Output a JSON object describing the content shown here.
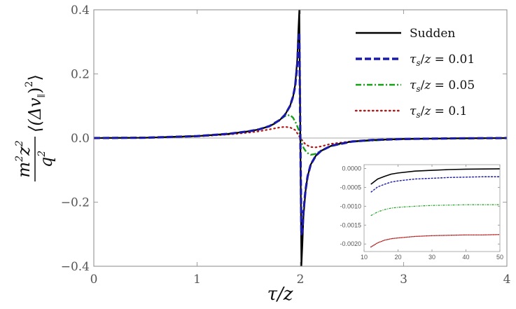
{
  "colors": {
    "Sudden": "#000000",
    "tau0.01": "#1a1aa6",
    "tau0.05": "#19a019",
    "tau0.1": "#b01717"
  },
  "chart_data": [
    {
      "type": "line",
      "xlabel": "τ/z",
      "ylabel": "m²z²/q² ⟨(Δv∥)²⟩",
      "xlim": [
        0,
        4
      ],
      "ylim": [
        -0.4,
        0.4
      ],
      "xticks": [
        "0",
        "1",
        "2",
        "3",
        "4"
      ],
      "yticks": [
        "−0.4",
        "−0.2",
        "0.0",
        "0.2",
        "0.4"
      ],
      "grid": false,
      "legend_position": "top-right",
      "series": [
        {
          "name": "Sudden",
          "key": "Sudden",
          "style": "solid",
          "x": [
            0.0,
            0.5,
            1.0,
            1.3,
            1.5,
            1.6,
            1.7,
            1.75,
            1.8,
            1.85,
            1.9,
            1.93,
            1.95,
            1.97,
            1.98,
            1.99,
            2.01,
            2.02,
            2.03,
            2.05,
            2.07,
            2.1,
            2.15,
            2.2,
            2.3,
            2.4,
            2.5,
            2.7,
            3.0,
            3.5,
            4.0
          ],
          "y": [
            0.0,
            0.001,
            0.006,
            0.013,
            0.021,
            0.027,
            0.037,
            0.045,
            0.056,
            0.072,
            0.1,
            0.13,
            0.166,
            0.245,
            0.33,
            0.4,
            -0.4,
            -0.33,
            -0.245,
            -0.166,
            -0.12,
            -0.083,
            -0.055,
            -0.04,
            -0.024,
            -0.016,
            -0.011,
            -0.006,
            -0.003,
            -0.001,
            0.0
          ]
        },
        {
          "name": "τs/z = 0.01",
          "key": "tau0.01",
          "style": "dashed",
          "x": [
            0.0,
            0.5,
            1.0,
            1.3,
            1.5,
            1.6,
            1.7,
            1.8,
            1.85,
            1.9,
            1.93,
            1.95,
            1.97,
            1.98,
            1.99,
            2.0,
            2.01,
            2.02,
            2.03,
            2.05,
            2.07,
            2.1,
            2.15,
            2.2,
            2.3,
            2.5,
            2.7,
            3.0,
            3.5,
            4.0
          ],
          "y": [
            0.0,
            0.001,
            0.006,
            0.013,
            0.021,
            0.027,
            0.037,
            0.056,
            0.072,
            0.1,
            0.13,
            0.163,
            0.23,
            0.3,
            0.33,
            0.0,
            -0.3,
            -0.29,
            -0.23,
            -0.163,
            -0.12,
            -0.083,
            -0.055,
            -0.04,
            -0.024,
            -0.011,
            -0.006,
            -0.003,
            -0.001,
            0.0
          ]
        },
        {
          "name": "τs/z = 0.05",
          "key": "tau0.05",
          "style": "dashdot",
          "x": [
            0.0,
            0.5,
            1.0,
            1.3,
            1.5,
            1.6,
            1.7,
            1.75,
            1.8,
            1.85,
            1.9,
            1.93,
            1.96,
            1.99,
            2.0,
            2.03,
            2.06,
            2.1,
            2.14,
            2.2,
            2.3,
            2.5,
            3.0,
            3.5,
            4.0
          ],
          "y": [
            0.0,
            0.001,
            0.006,
            0.013,
            0.021,
            0.027,
            0.037,
            0.045,
            0.058,
            0.068,
            0.072,
            0.063,
            0.045,
            0.02,
            0.0,
            -0.03,
            -0.045,
            -0.052,
            -0.05,
            -0.04,
            -0.025,
            -0.011,
            -0.003,
            -0.001,
            0.0
          ]
        },
        {
          "name": "τs/z = 0.1",
          "key": "tau0.1",
          "style": "dotted",
          "x": [
            0.0,
            0.5,
            1.0,
            1.3,
            1.5,
            1.6,
            1.7,
            1.8,
            1.85,
            1.9,
            1.95,
            2.0,
            2.05,
            2.1,
            2.15,
            2.2,
            2.3,
            2.5,
            3.0,
            3.5,
            4.0
          ],
          "y": [
            0.0,
            0.001,
            0.005,
            0.011,
            0.017,
            0.021,
            0.027,
            0.033,
            0.035,
            0.033,
            0.025,
            0.0,
            -0.02,
            -0.028,
            -0.029,
            -0.026,
            -0.018,
            -0.01,
            -0.003,
            -0.001,
            0.0
          ]
        }
      ]
    },
    {
      "type": "line",
      "xlabel": "",
      "ylabel": "",
      "xlim": [
        10,
        50
      ],
      "ylim": [
        -0.0022,
        0.0001
      ],
      "xticks": [
        "10",
        "20",
        "30",
        "40",
        "50"
      ],
      "yticks": [
        "0.0000",
        "-0.0005",
        "-0.0010",
        "-0.0015",
        "-0.0020"
      ],
      "grid": false,
      "series": [
        {
          "key": "Sudden",
          "style": "solid",
          "x": [
            12,
            14,
            16,
            18,
            20,
            25,
            30,
            35,
            40,
            45,
            50
          ],
          "y": [
            -0.00042,
            -0.00028,
            -0.00021,
            -0.00015,
            -0.00012,
            -7e-05,
            -5e-05,
            -3e-05,
            -2e-05,
            -1.5e-05,
            -1e-05
          ]
        },
        {
          "key": "tau0.01",
          "style": "dashed",
          "x": [
            12,
            14,
            16,
            18,
            20,
            25,
            30,
            35,
            40,
            45,
            50
          ],
          "y": [
            -0.00063,
            -0.00049,
            -0.00042,
            -0.00036,
            -0.00033,
            -0.00028,
            -0.00026,
            -0.00024,
            -0.00023,
            -0.00022,
            -0.00022
          ]
        },
        {
          "key": "tau0.05",
          "style": "dashdot",
          "x": [
            12,
            14,
            16,
            18,
            20,
            25,
            30,
            35,
            40,
            45,
            50
          ],
          "y": [
            -0.00125,
            -0.00115,
            -0.00109,
            -0.00105,
            -0.00103,
            -0.001,
            -0.00098,
            -0.00097,
            -0.00096,
            -0.00096,
            -0.00096
          ]
        },
        {
          "key": "tau0.1",
          "style": "dotted",
          "x": [
            12,
            14,
            16,
            18,
            20,
            25,
            30,
            35,
            40,
            45,
            50
          ],
          "y": [
            -0.00208,
            -0.00197,
            -0.0019,
            -0.00186,
            -0.00184,
            -0.0018,
            -0.00178,
            -0.00177,
            -0.00176,
            -0.00176,
            -0.00175
          ]
        }
      ]
    }
  ],
  "legend": [
    {
      "key": "Sudden",
      "style": "solid",
      "label": "Sudden"
    },
    {
      "key": "tau0.01",
      "style": "dashed",
      "label": "τs/z = 0.01"
    },
    {
      "key": "tau0.05",
      "style": "dashdot",
      "label": "τs/z = 0.05"
    },
    {
      "key": "tau0.1",
      "style": "dotted",
      "label": "τs/z = 0.1"
    }
  ]
}
